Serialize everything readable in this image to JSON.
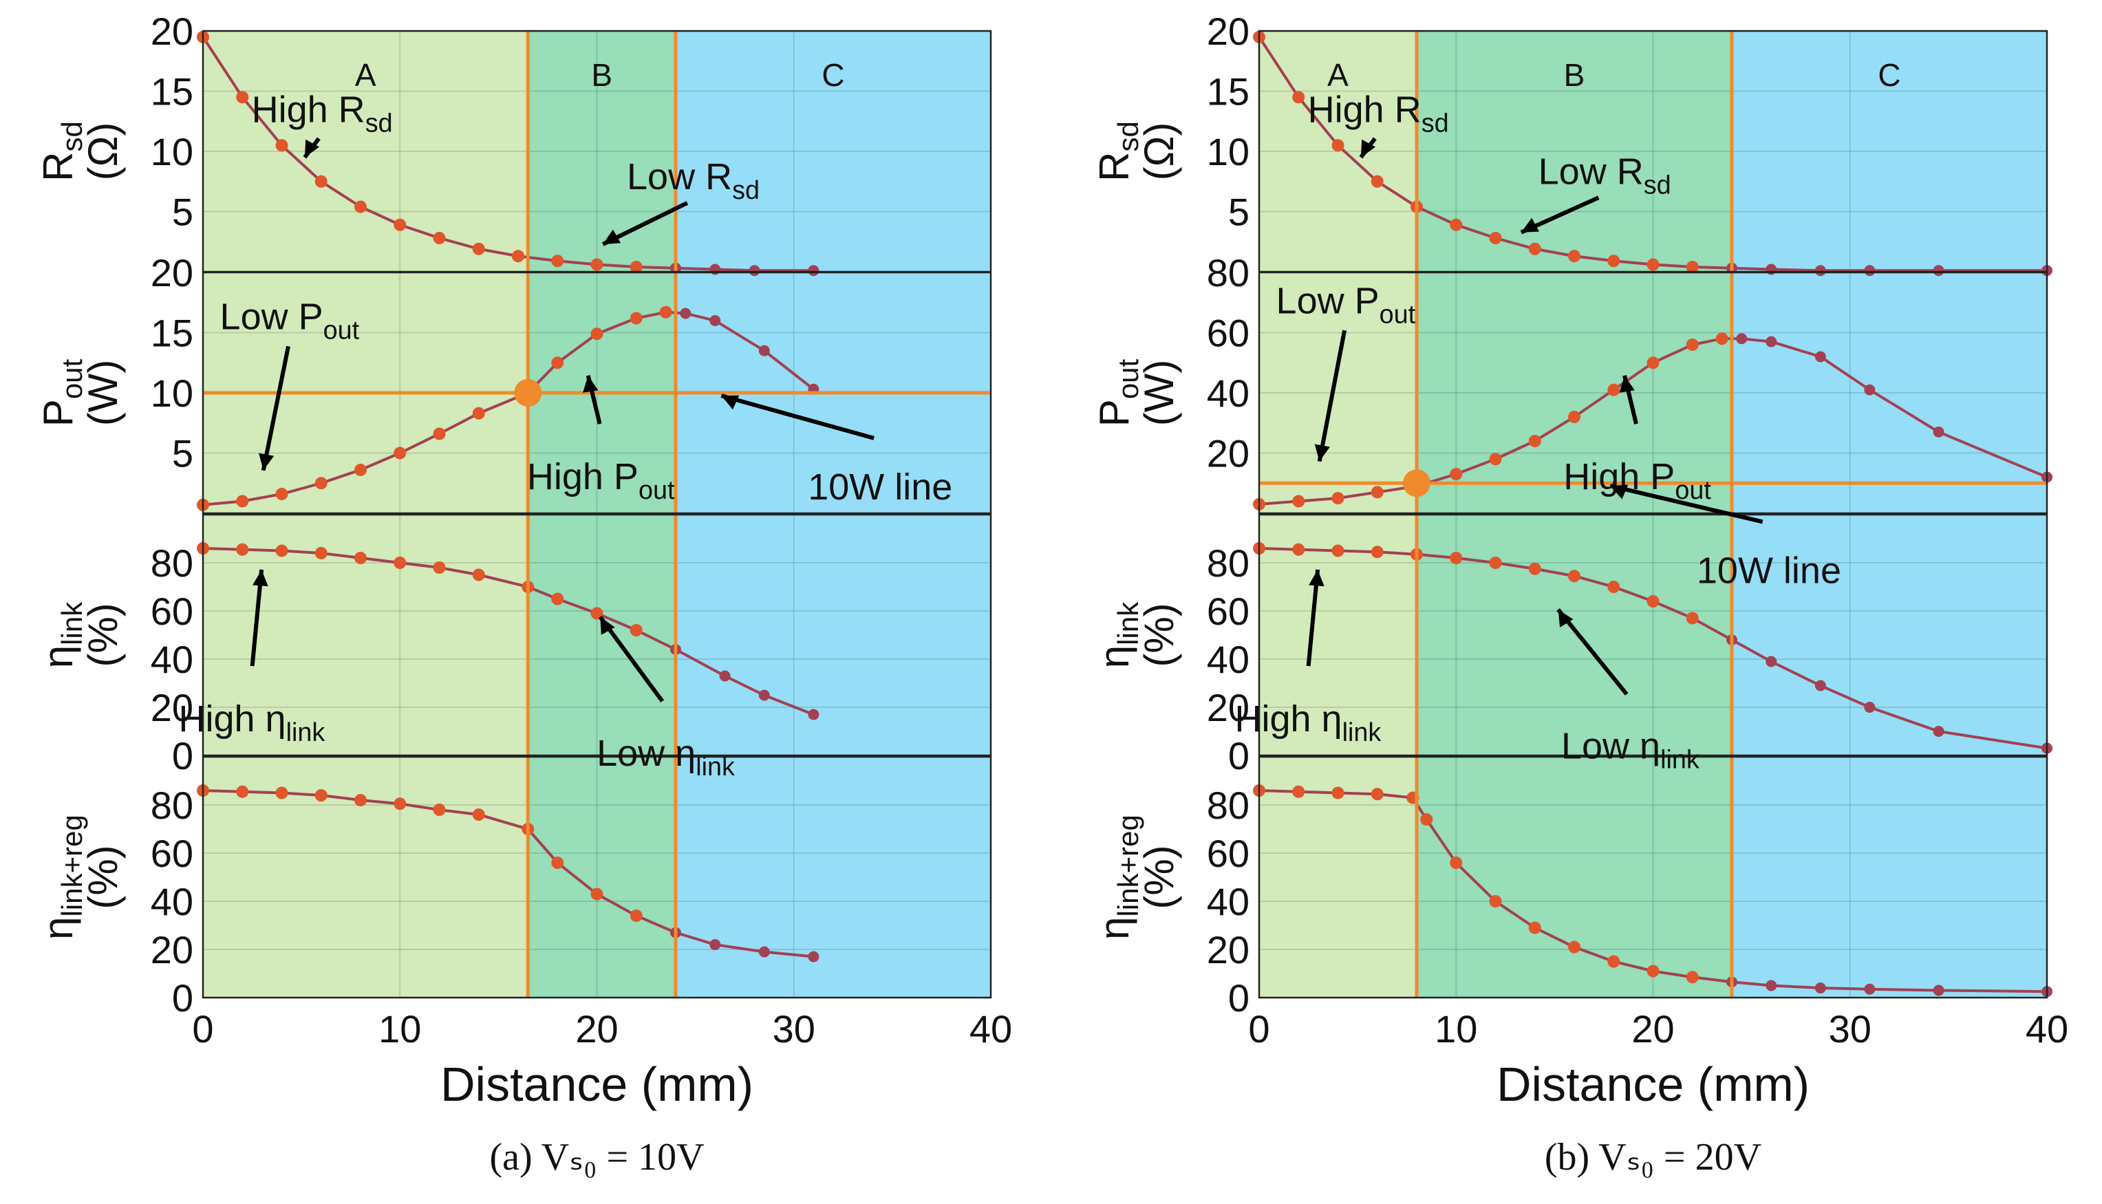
{
  "chart_data": [
    {
      "type": "line",
      "caption": "(a)  Vₛ₀ = 10V",
      "xlabel": "Distance (mm)",
      "xlim": [
        0,
        40
      ],
      "xticks": [
        "0",
        "10",
        "20",
        "30",
        "40"
      ],
      "colors": {
        "regionA": "#d3eaba",
        "regionB": "#97deb9",
        "regionC": "#96def7",
        "boundary": "#f08a2c",
        "curve_hi": "#e0562a",
        "curve_lo": "#a34152"
      },
      "regions": [
        {
          "label": "A",
          "from": 0,
          "to": 16.5
        },
        {
          "label": "B",
          "from": 16.5,
          "to": 24
        },
        {
          "label": "C",
          "from": 24,
          "to": 40
        }
      ],
      "reference_line": {
        "panel": 1,
        "y": 10,
        "label": "10W line",
        "crossing_x": 16.5
      },
      "panels": [
        {
          "ylabel": "R",
          "ylabel_sub": "sd",
          "ylabel_unit": "(Ω)",
          "ylim": [
            0,
            20
          ],
          "yticks": [
            "5",
            "10",
            "15",
            "20"
          ],
          "series": {
            "x": [
              0,
              2,
              4,
              6,
              8,
              10,
              12,
              14,
              16,
              18,
              20,
              22,
              24,
              26,
              28,
              31
            ],
            "y": [
              19.5,
              14.5,
              10.5,
              7.5,
              5.4,
              3.9,
              2.8,
              1.9,
              1.3,
              0.9,
              0.6,
              0.4,
              0.3,
              0.2,
              0.1,
              0.1
            ]
          },
          "annotations": [
            {
              "text": "High R",
              "sub": "sd",
              "point": [
                5,
                9
              ]
            },
            {
              "text": "Low R",
              "sub": "sd",
              "point": [
                20,
                2
              ]
            }
          ]
        },
        {
          "ylabel": "P",
          "ylabel_sub": "out",
          "ylabel_unit": "(W)",
          "ylim": [
            0,
            20
          ],
          "yticks": [
            "5",
            "10",
            "15",
            "20"
          ],
          "series": {
            "x": [
              0,
              2,
              4,
              6,
              8,
              10,
              12,
              14,
              16.5,
              18,
              20,
              22,
              23.5,
              24.5,
              26,
              28.5,
              31
            ],
            "y": [
              0.7,
              1.0,
              1.6,
              2.5,
              3.6,
              5.0,
              6.6,
              8.3,
              10.0,
              12.5,
              14.9,
              16.2,
              16.7,
              16.6,
              16.0,
              13.5,
              10.3
            ]
          },
          "annotations": [
            {
              "text": "Low P",
              "sub": "out",
              "point": [
                3,
                3
              ]
            },
            {
              "text": "High P",
              "sub": "out",
              "point": [
                19.5,
                12
              ]
            },
            {
              "text": "10W line",
              "sub": "",
              "point": [
                26,
                10
              ]
            }
          ]
        },
        {
          "ylabel": "η",
          "ylabel_sub": "link",
          "ylabel_unit": "(%)",
          "ylim": [
            0,
            100
          ],
          "yticks": [
            "0",
            "20",
            "40",
            "60",
            "80"
          ],
          "series": {
            "x": [
              0,
              2,
              4,
              6,
              8,
              10,
              12,
              14,
              16.5,
              18,
              20,
              22,
              24,
              26.5,
              28.5,
              31
            ],
            "y": [
              86,
              85.5,
              85,
              84,
              82,
              80,
              78,
              75,
              70,
              65,
              59,
              52,
              44,
              33,
              25,
              17
            ]
          },
          "annotations": [
            {
              "text": "High η",
              "sub": "link",
              "point": [
                3,
                80
              ]
            },
            {
              "text": "Low η",
              "sub": "link",
              "point": [
                20,
                60
              ]
            }
          ]
        },
        {
          "ylabel": "η",
          "ylabel_sub": "link+reg",
          "ylabel_unit": "(%)",
          "ylim": [
            0,
            100
          ],
          "yticks": [
            "0",
            "20",
            "40",
            "60",
            "80"
          ],
          "series": {
            "x": [
              0,
              2,
              4,
              6,
              8,
              10,
              12,
              14,
              16.5,
              18,
              20,
              22,
              24,
              26,
              28.5,
              31
            ],
            "y": [
              86,
              85.5,
              85,
              84,
              82,
              80.5,
              78,
              76,
              70,
              56,
              43,
              34,
              27,
              22,
              19,
              17
            ]
          },
          "annotations": []
        }
      ]
    },
    {
      "type": "line",
      "caption": "(b)  Vₛ₀ = 20V",
      "xlabel": "Distance (mm)",
      "xlim": [
        0,
        40
      ],
      "xticks": [
        "0",
        "10",
        "20",
        "30",
        "40"
      ],
      "colors": {
        "regionA": "#d3eaba",
        "regionB": "#97deb9",
        "regionC": "#96def7",
        "boundary": "#f08a2c",
        "curve_hi": "#e0562a",
        "curve_lo": "#a34152"
      },
      "regions": [
        {
          "label": "A",
          "from": 0,
          "to": 8
        },
        {
          "label": "B",
          "from": 8,
          "to": 24
        },
        {
          "label": "C",
          "from": 24,
          "to": 40
        }
      ],
      "reference_line": {
        "panel": 1,
        "y": 10,
        "label": "10W line",
        "crossing_x": 8
      },
      "panels": [
        {
          "ylabel": "R",
          "ylabel_sub": "sd",
          "ylabel_unit": "(Ω)",
          "ylim": [
            0,
            20
          ],
          "yticks": [
            "5",
            "10",
            "15",
            "20"
          ],
          "series": {
            "x": [
              0,
              2,
              4,
              6,
              8,
              10,
              12,
              14,
              16,
              18,
              20,
              22,
              24,
              26,
              28.5,
              31,
              34.5,
              40
            ],
            "y": [
              19.5,
              14.5,
              10.5,
              7.5,
              5.4,
              3.9,
              2.8,
              1.9,
              1.3,
              0.9,
              0.6,
              0.4,
              0.3,
              0.2,
              0.1,
              0.1,
              0.1,
              0.1
            ]
          },
          "annotations": [
            {
              "text": "High R",
              "sub": "sd",
              "point": [
                5,
                9
              ]
            },
            {
              "text": "Low R",
              "sub": "sd",
              "point": [
                13,
                3
              ]
            }
          ]
        },
        {
          "ylabel": "P",
          "ylabel_sub": "out",
          "ylabel_unit": "(W)",
          "ylim": [
            0,
            80
          ],
          "yticks": [
            "20",
            "40",
            "60",
            "80"
          ],
          "series": {
            "x": [
              0,
              2,
              4,
              6,
              8,
              10,
              12,
              14,
              16,
              18,
              20,
              22,
              23.5,
              24.5,
              26,
              28.5,
              31,
              34.5,
              40
            ],
            "y": [
              3,
              4,
              5,
              7,
              9,
              13,
              18,
              24,
              32,
              41,
              50,
              56,
              58,
              58,
              57,
              52,
              41,
              27,
              12
            ]
          },
          "annotations": [
            {
              "text": "Low P",
              "sub": "out",
              "point": [
                3,
                15
              ]
            },
            {
              "text": "High P",
              "sub": "out",
              "point": [
                18.5,
                48
              ]
            },
            {
              "text": "10W line",
              "sub": "",
              "point": [
                17.5,
                10
              ]
            }
          ]
        },
        {
          "ylabel": "η",
          "ylabel_sub": "link",
          "ylabel_unit": "(%)",
          "ylim": [
            0,
            100
          ],
          "yticks": [
            "0",
            "20",
            "40",
            "60",
            "80"
          ],
          "series": {
            "x": [
              0,
              2,
              4,
              6,
              8,
              10,
              12,
              14,
              16,
              18,
              20,
              22,
              24,
              26,
              28.5,
              31,
              34.5,
              40
            ],
            "y": [
              86,
              85.5,
              85,
              84.5,
              83.5,
              82,
              80,
              77.5,
              74.5,
              70,
              64,
              57,
              48,
              39,
              29,
              20,
              10,
              3
            ]
          },
          "annotations": [
            {
              "text": "High η",
              "sub": "link",
              "point": [
                3,
                80
              ]
            },
            {
              "text": "Low η",
              "sub": "link",
              "point": [
                15,
                63
              ]
            }
          ]
        },
        {
          "ylabel": "η",
          "ylabel_sub": "link+reg",
          "ylabel_unit": "(%)",
          "ylim": [
            0,
            100
          ],
          "yticks": [
            "0",
            "20",
            "40",
            "60",
            "80"
          ],
          "series": {
            "x": [
              0,
              2,
              4,
              6,
              7.8,
              8.5,
              10,
              12,
              14,
              16,
              18,
              20,
              22,
              24,
              26,
              28.5,
              31,
              34.5,
              40
            ],
            "y": [
              86,
              85.5,
              85,
              84.5,
              83,
              74,
              56,
              40,
              29,
              21,
              15,
              11,
              8.5,
              6.5,
              5,
              4,
              3.5,
              3,
              2.5
            ]
          },
          "annotations": []
        }
      ]
    }
  ]
}
